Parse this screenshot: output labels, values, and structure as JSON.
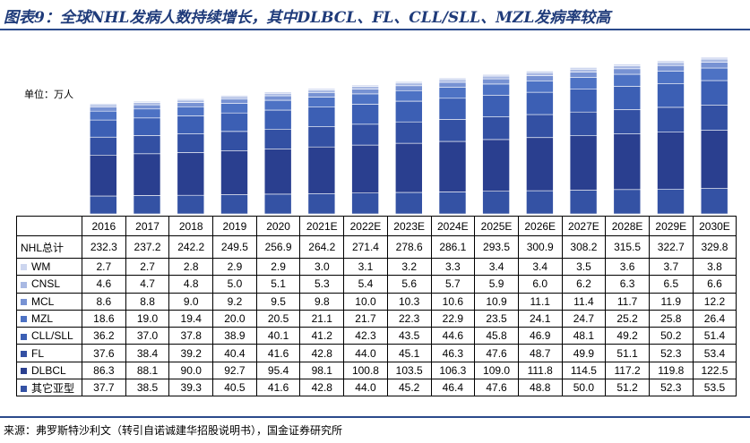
{
  "title": "图表9：全球NHL发病人数持续增长，其中DLBCL、FL、CLL/SLL、MZL发病率较高",
  "unit_label": "单位：万人",
  "source": "来源：弗罗斯特沙利文（转引自诺诚建华招股说明书），国金证券研究所",
  "chart_data": {
    "type": "bar",
    "stacked": true,
    "categories": [
      "2016",
      "2017",
      "2018",
      "2019",
      "2020",
      "2021E",
      "2022E",
      "2023E",
      "2024E",
      "2025E",
      "2026E",
      "2027E",
      "2028E",
      "2029E",
      "2030E"
    ],
    "total_label": "NHL总计",
    "totals": [
      232.3,
      237.2,
      242.2,
      249.5,
      256.9,
      264.2,
      271.4,
      278.6,
      286.1,
      293.5,
      300.9,
      308.2,
      315.5,
      322.7,
      329.8
    ],
    "series": [
      {
        "name": "其它亚型",
        "color": "#3452a4",
        "values": [
          37.7,
          38.5,
          39.3,
          40.5,
          41.6,
          42.8,
          44.0,
          45.2,
          46.4,
          47.6,
          48.8,
          50.0,
          51.2,
          52.3,
          53.5
        ]
      },
      {
        "name": "DLBCL",
        "color": "#2a3f8f",
        "values": [
          86.3,
          88.1,
          90.0,
          92.7,
          95.4,
          98.1,
          100.8,
          103.5,
          106.3,
          109.0,
          111.8,
          114.5,
          117.2,
          119.8,
          122.5
        ]
      },
      {
        "name": "FL",
        "color": "#3350a3",
        "values": [
          37.6,
          38.4,
          39.2,
          40.4,
          41.6,
          42.8,
          44.0,
          45.1,
          46.3,
          47.6,
          48.7,
          49.9,
          51.1,
          52.3,
          53.4
        ]
      },
      {
        "name": "CLL/SLL",
        "color": "#3c5fb4",
        "values": [
          36.2,
          37.0,
          37.8,
          38.9,
          40.1,
          41.2,
          42.3,
          43.5,
          44.6,
          45.8,
          46.9,
          48.1,
          49.2,
          50.2,
          51.4
        ]
      },
      {
        "name": "MZL",
        "color": "#4d72c4",
        "values": [
          18.6,
          19.0,
          19.4,
          20.0,
          20.5,
          21.1,
          21.7,
          22.3,
          22.9,
          23.5,
          24.1,
          24.7,
          25.2,
          25.8,
          26.4
        ]
      },
      {
        "name": "MCL",
        "color": "#7792d3",
        "values": [
          8.6,
          8.8,
          9.0,
          9.2,
          9.5,
          9.8,
          10.0,
          10.3,
          10.6,
          10.9,
          11.1,
          11.4,
          11.7,
          11.9,
          12.2
        ]
      },
      {
        "name": "CNSL",
        "color": "#a9b9e3",
        "values": [
          4.6,
          4.7,
          4.8,
          5.0,
          5.1,
          5.3,
          5.4,
          5.6,
          5.7,
          5.9,
          6.0,
          6.2,
          6.3,
          6.5,
          6.6
        ]
      },
      {
        "name": "WM",
        "color": "#cdd6ef",
        "values": [
          2.7,
          2.7,
          2.8,
          2.9,
          2.9,
          3.0,
          3.1,
          3.2,
          3.3,
          3.4,
          3.4,
          3.5,
          3.6,
          3.7,
          3.8
        ]
      }
    ],
    "table_row_order": [
      "WM",
      "CNSL",
      "MCL",
      "MZL",
      "CLL/SLL",
      "FL",
      "DLBCL",
      "其它亚型"
    ],
    "ylim": [
      0,
      340
    ],
    "grid": false,
    "legend": "table"
  }
}
